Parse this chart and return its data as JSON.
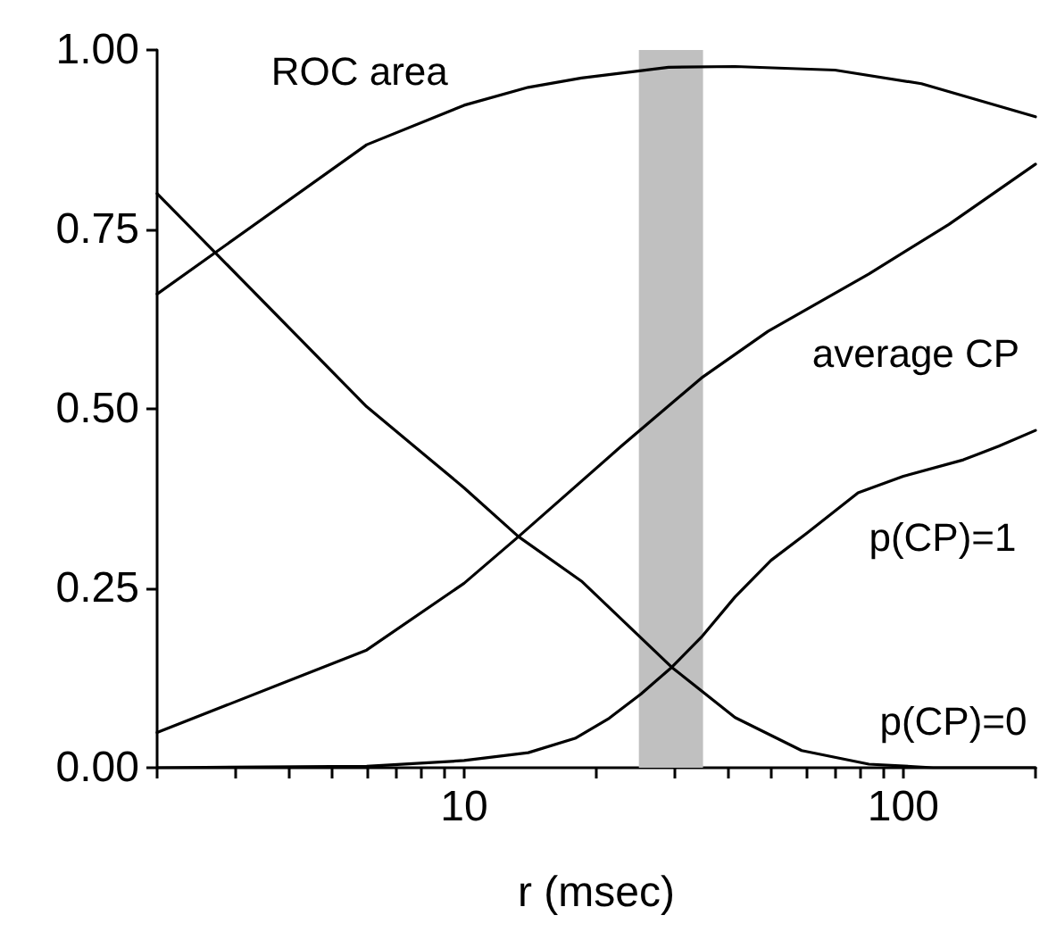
{
  "chart_data": {
    "type": "line",
    "xlabel": "r (msec)",
    "log": "x",
    "xlim": [
      2,
      200
    ],
    "xticks": [
      {
        "value": 2,
        "label": null
      },
      {
        "value": 3,
        "label": null
      },
      {
        "value": 4,
        "label": null
      },
      {
        "value": 5,
        "label": null
      },
      {
        "value": 6,
        "label": null
      },
      {
        "value": 7,
        "label": null
      },
      {
        "value": 8,
        "label": null
      },
      {
        "value": 9,
        "label": null
      },
      10,
      {
        "value": 20,
        "label": null
      },
      {
        "value": 30,
        "label": null
      },
      {
        "value": 40,
        "label": null
      },
      {
        "value": 50,
        "label": null
      },
      {
        "value": 60,
        "label": null
      },
      {
        "value": 70,
        "label": null
      },
      {
        "value": 80,
        "label": null
      },
      {
        "value": 90,
        "label": null
      },
      100,
      {
        "value": 200,
        "label": null
      }
    ],
    "ylim": [
      0,
      1
    ],
    "yticks": [
      {
        "value": 0,
        "label": "0.00"
      },
      {
        "value": 0.25,
        "label": "0.25"
      },
      {
        "value": 0.5,
        "label": "0.50"
      },
      {
        "value": 0.75,
        "label": "0.75"
      },
      {
        "value": 1,
        "label": "1.00"
      }
    ],
    "grid": false,
    "legend": false,
    "marker": "none",
    "line_style": "solid",
    "series": [
      {
        "name": "ROC area",
        "color": "#000000",
        "x": [
          2,
          6,
          10,
          14,
          18.5,
          29.2,
          41.4,
          69.9,
          110,
          200
        ],
        "values": [
          0.66,
          0.868,
          0.923,
          0.948,
          0.961,
          0.976,
          0.977,
          0.972,
          0.953,
          0.907
        ]
      },
      {
        "name": "p(CP)=0",
        "color": "#000000",
        "x": [
          2,
          6,
          10,
          13.3,
          18.5,
          29.7,
          41.4,
          58.7,
          83.5,
          117,
          200
        ],
        "values": [
          0.8,
          0.503,
          0.39,
          0.322,
          0.26,
          0.14,
          0.07,
          0.024,
          0.005,
          0,
          0
        ]
      },
      {
        "name": "average CP",
        "color": "#000000",
        "x": [
          2,
          6,
          10,
          13.3,
          22.8,
          34.7,
          49.2,
          83.5,
          127,
          200
        ],
        "values": [
          0.049,
          0.164,
          0.257,
          0.322,
          0.448,
          0.543,
          0.608,
          0.688,
          0.757,
          0.841
        ]
      },
      {
        "name": "p(CP)=1",
        "color": "#000000",
        "x": [
          2,
          6,
          10,
          14,
          17.9,
          21.4,
          25.3,
          29.7,
          34.7,
          41.4,
          50,
          60.4,
          78.9,
          100,
          137,
          165,
          200
        ],
        "values": [
          0,
          0.002,
          0.01,
          0.021,
          0.041,
          0.069,
          0.103,
          0.14,
          0.182,
          0.238,
          0.289,
          0.327,
          0.383,
          0.406,
          0.429,
          0.448,
          0.47
        ]
      }
    ],
    "bands": [
      {
        "axis": "x",
        "from": 25,
        "to": 35,
        "color": "#c0c0c0"
      }
    ]
  }
}
